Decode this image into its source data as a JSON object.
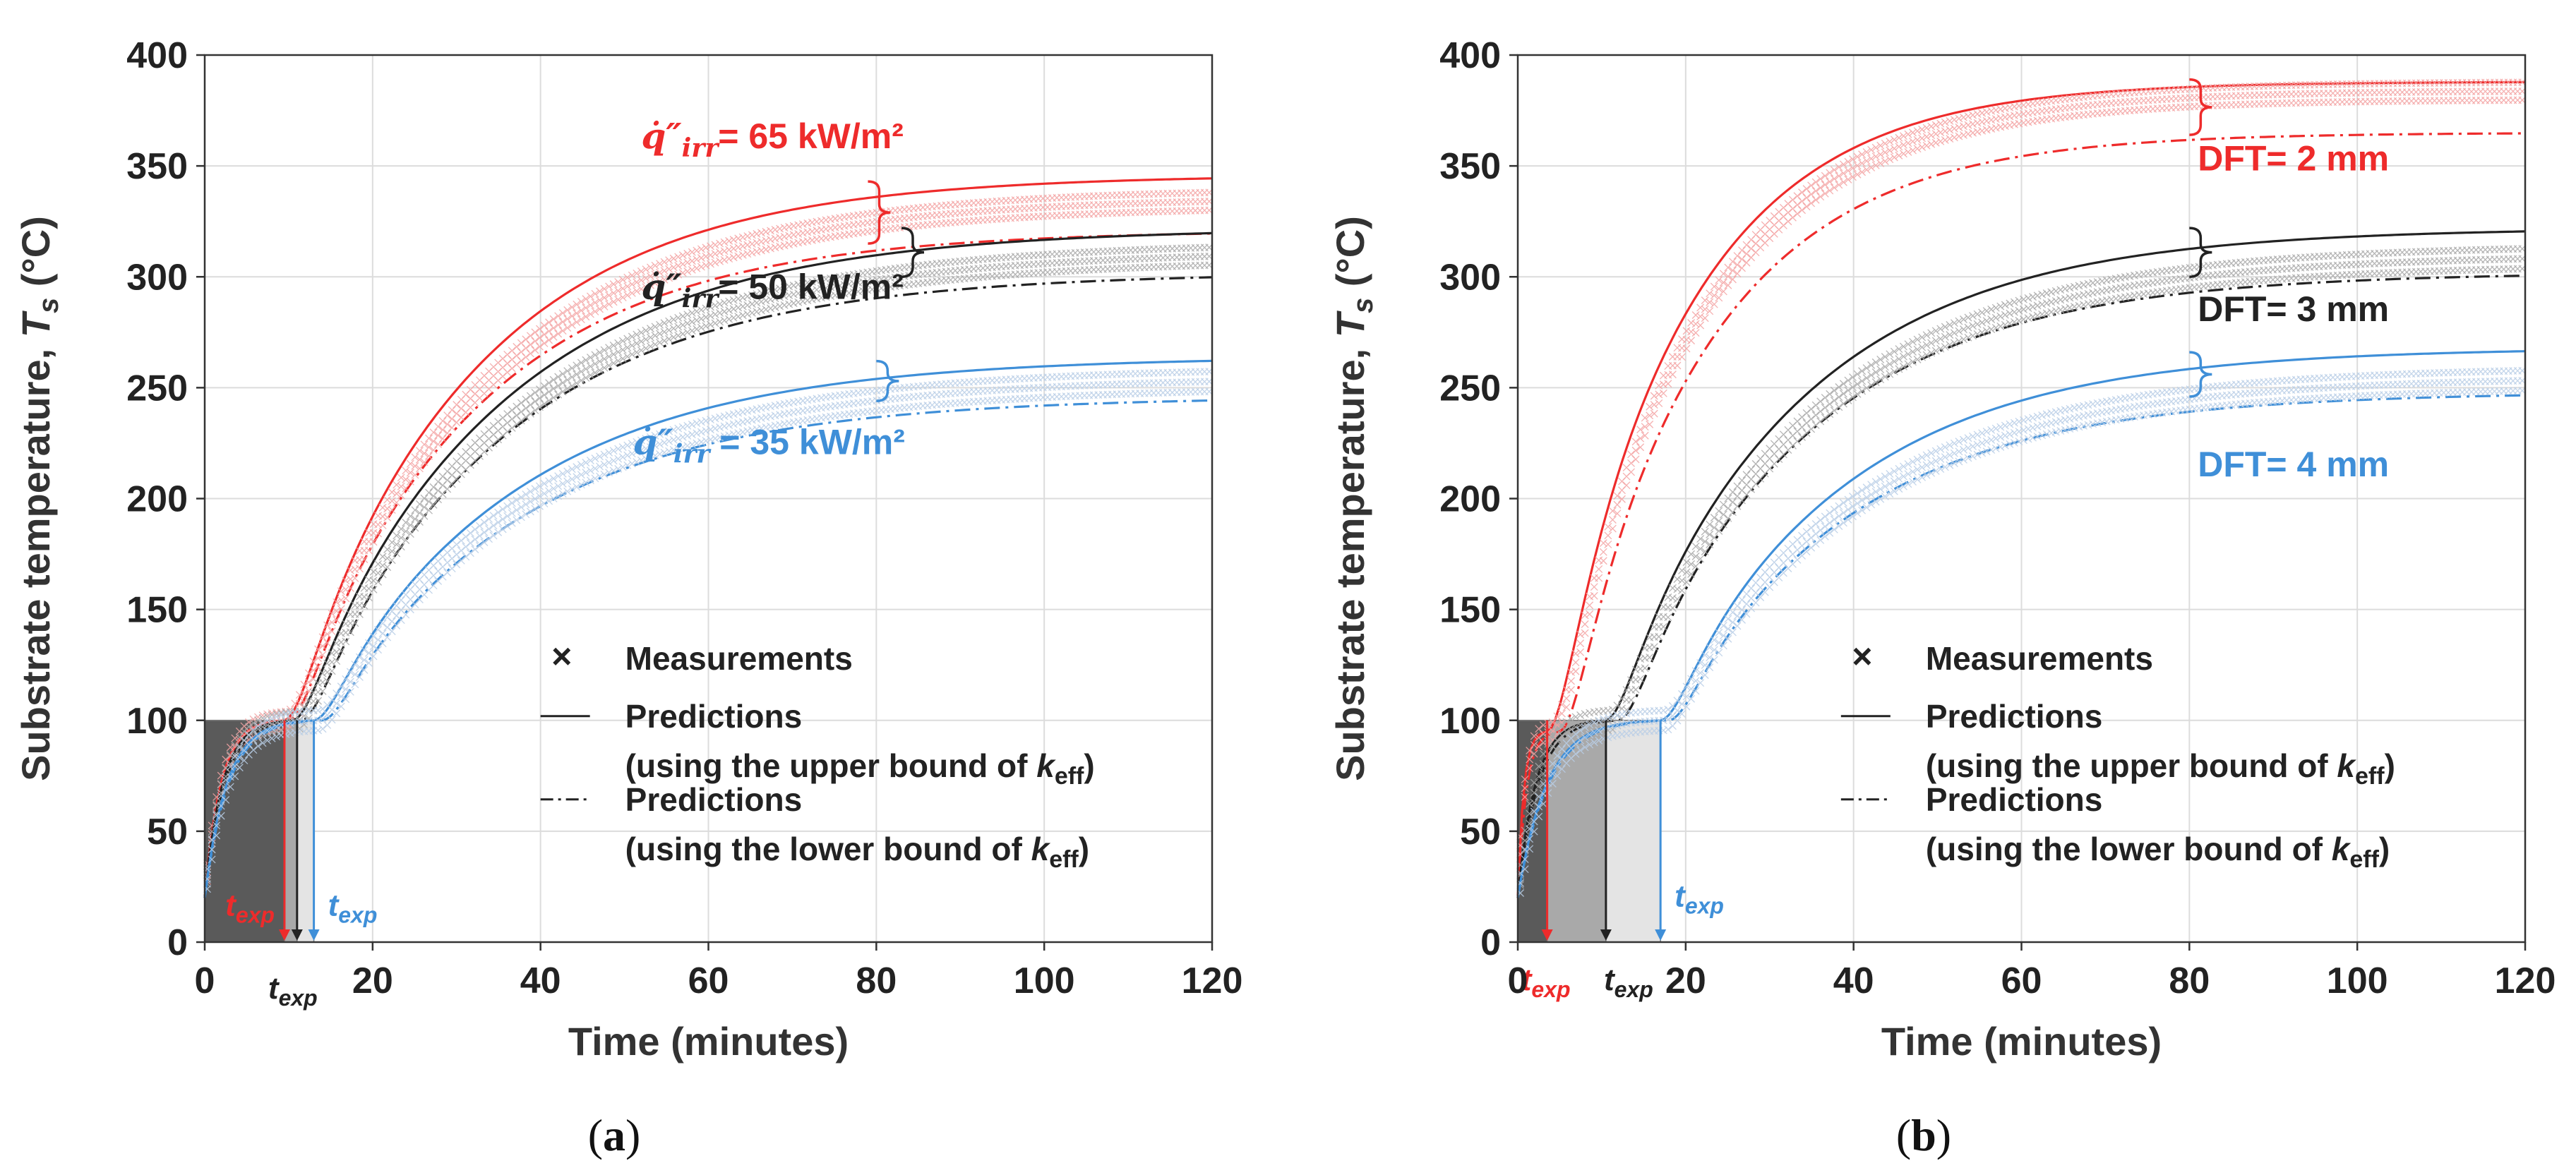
{
  "colors": {
    "red": "#ee2b2b",
    "black": "#222222",
    "blue": "#3f8fd8",
    "measure_red": "#f3a3a3",
    "measure_black": "#a8a8a8",
    "measure_blue": "#b8cee6",
    "grid": "#dcdcdc"
  },
  "chart_data": [
    {
      "type": "line",
      "panel": "(a)",
      "xlabel": "Time (minutes)",
      "ylabel": "Substrate temperature, ",
      "ylabel_symbol": "T",
      "ylabel_sub": "s",
      "ylabel_unit": " (°C)",
      "xlim": [
        0,
        120
      ],
      "ylim": [
        0,
        400
      ],
      "xticks": [
        0,
        20,
        40,
        60,
        80,
        100,
        120
      ],
      "yticks": [
        0,
        50,
        100,
        150,
        200,
        250,
        300,
        350,
        400
      ],
      "grid": true,
      "legend": {
        "position": "lower-right",
        "entries": [
          {
            "marker": "×",
            "label": "Measurements"
          },
          {
            "line": "solid",
            "label": "Predictions",
            "label2": "(using the upper bound of ",
            "k": "k",
            "sub": "eff",
            "close": ")"
          },
          {
            "line": "dashdot",
            "label": "Predictions",
            "label2": "(using the lower bound of ",
            "k": "k",
            "sub": "eff",
            "close": ")"
          }
        ]
      },
      "annotations": [
        {
          "prefix": "q̇″",
          "sub": "irr",
          "text": "= 65 kW/m²",
          "color": "red"
        },
        {
          "prefix": "q̇″",
          "sub": "irr",
          "text": "= 50 kW/m²",
          "color": "black"
        },
        {
          "prefix": "q̇″",
          "sub": "irr",
          "text": " = 35 kW/m²",
          "color": "blue"
        }
      ],
      "texp_labels": [
        {
          "t": "t",
          "sub": "exp",
          "color": "red",
          "x": 9.5
        },
        {
          "t": "t",
          "sub": "exp",
          "color": "black",
          "x": 11
        },
        {
          "t": "t",
          "sub": "exp",
          "color": "blue",
          "x": 13
        }
      ],
      "series": [
        {
          "color": "red",
          "kind": "upper",
          "t_exp": 9.5,
          "plateau": 100,
          "final": 346,
          "tau": 22
        },
        {
          "color": "red",
          "kind": "lower",
          "t_exp": 10,
          "plateau": 100,
          "final": 321,
          "tau": 22
        },
        {
          "color": "red",
          "kind": "measure",
          "t_exp": 9.7,
          "plateau": 100,
          "final": 336,
          "band": 8,
          "tau": 23
        },
        {
          "color": "black",
          "kind": "upper",
          "t_exp": 10.5,
          "plateau": 100,
          "final": 322,
          "tau": 24
        },
        {
          "color": "black",
          "kind": "lower",
          "t_exp": 11.5,
          "plateau": 100,
          "final": 302,
          "tau": 24
        },
        {
          "color": "black",
          "kind": "measure",
          "t_exp": 11,
          "plateau": 100,
          "final": 312,
          "band": 8,
          "tau": 25
        },
        {
          "color": "blue",
          "kind": "upper",
          "t_exp": 13,
          "plateau": 100,
          "final": 264,
          "tau": 24
        },
        {
          "color": "blue",
          "kind": "lower",
          "t_exp": 14,
          "plateau": 100,
          "final": 246,
          "tau": 24
        },
        {
          "color": "blue",
          "kind": "measure",
          "t_exp": 13.5,
          "plateau": 100,
          "final": 255,
          "band": 9,
          "tau": 25
        }
      ]
    },
    {
      "type": "line",
      "panel": "(b)",
      "xlabel": "Time (minutes)",
      "ylabel": "Substrate temperature, ",
      "ylabel_symbol": "T",
      "ylabel_sub": "s",
      "ylabel_unit": " (°C)",
      "xlim": [
        0,
        120
      ],
      "ylim": [
        0,
        400
      ],
      "xticks": [
        0,
        20,
        40,
        60,
        80,
        100,
        120
      ],
      "yticks": [
        0,
        50,
        100,
        150,
        200,
        250,
        300,
        350,
        400
      ],
      "grid": true,
      "legend": {
        "position": "lower-right",
        "entries": [
          {
            "marker": "×",
            "label": "Measurements"
          },
          {
            "line": "solid",
            "label": "Predictions",
            "label2": "(using the upper bound of ",
            "k": "k",
            "sub": "eff",
            "close": ")"
          },
          {
            "line": "dashdot",
            "label": "Predictions",
            "label2": "(using the lower bound of ",
            "k": "k",
            "sub": "eff",
            "close": ")"
          }
        ]
      },
      "annotations": [
        {
          "text": "DFT= 2 mm",
          "color": "red"
        },
        {
          "text": "DFT= 3 mm",
          "color": "black"
        },
        {
          "text": "DFT= 4 mm",
          "color": "blue"
        }
      ],
      "texp_labels": [
        {
          "t": "t",
          "sub": "exp",
          "color": "red",
          "x": 3.5
        },
        {
          "t": "t",
          "sub": "exp",
          "color": "black",
          "x": 10.5
        },
        {
          "t": "t",
          "sub": "exp",
          "color": "blue",
          "x": 17
        }
      ],
      "series": [
        {
          "color": "red",
          "kind": "upper",
          "t_exp": 3.5,
          "plateau": 95,
          "final": 388,
          "tau": 16
        },
        {
          "color": "red",
          "kind": "lower",
          "t_exp": 5,
          "plateau": 95,
          "final": 365,
          "tau": 17
        },
        {
          "color": "red",
          "kind": "measure",
          "t_exp": 4,
          "plateau": 95,
          "final": 384,
          "band": 8,
          "tau": 17
        },
        {
          "color": "black",
          "kind": "upper",
          "t_exp": 10.5,
          "plateau": 100,
          "final": 322,
          "tau": 22
        },
        {
          "color": "black",
          "kind": "lower",
          "t_exp": 12,
          "plateau": 100,
          "final": 302,
          "tau": 22
        },
        {
          "color": "black",
          "kind": "measure",
          "t_exp": 11,
          "plateau": 100,
          "final": 310,
          "band": 9,
          "tau": 23
        },
        {
          "color": "blue",
          "kind": "upper",
          "t_exp": 17,
          "plateau": 100,
          "final": 268,
          "tau": 22
        },
        {
          "color": "blue",
          "kind": "lower",
          "t_exp": 18,
          "plateau": 100,
          "final": 248,
          "tau": 22
        },
        {
          "color": "blue",
          "kind": "measure",
          "t_exp": 17.5,
          "plateau": 100,
          "final": 255,
          "band": 9,
          "tau": 23
        }
      ]
    }
  ]
}
